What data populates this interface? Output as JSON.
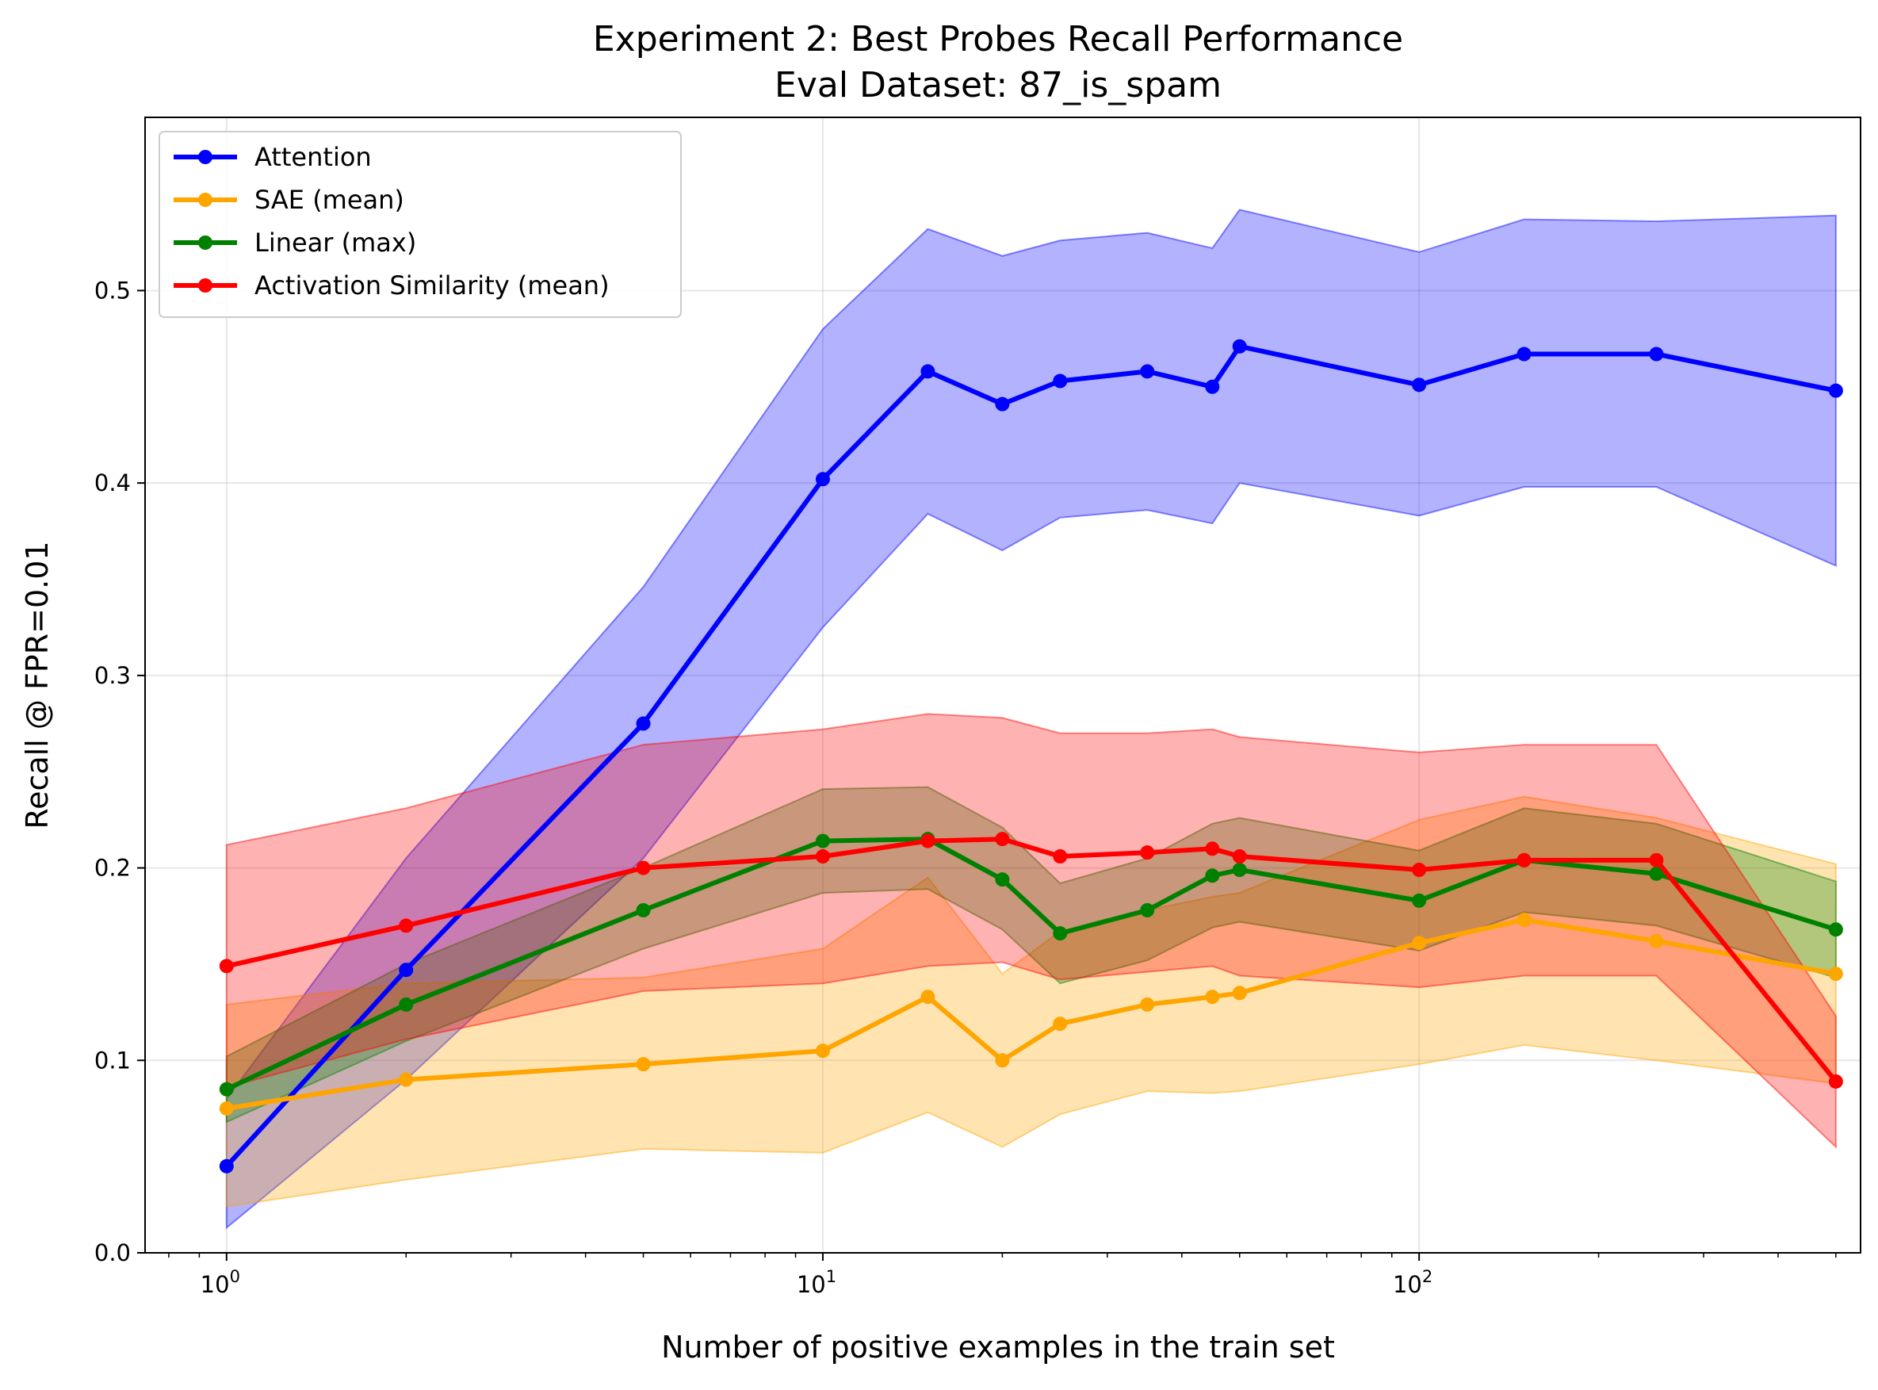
{
  "chart_data": {
    "type": "line",
    "title": "Experiment 2: Best Probes Recall Performance",
    "subtitle": "Eval Dataset: 87_is_spam",
    "xlabel": "Number of positive examples in the train set",
    "ylabel": "Recall @ FPR=0.01",
    "x_scale": "log",
    "xlim": [
      0.73,
      550
    ],
    "ylim": [
      0,
      0.59
    ],
    "x_ticks": [
      {
        "value": 1,
        "base": "10",
        "exp": "0"
      },
      {
        "value": 10,
        "base": "10",
        "exp": "1"
      },
      {
        "value": 100,
        "base": "10",
        "exp": "2"
      }
    ],
    "y_ticks": [
      {
        "value": 0.0,
        "label": "0.0"
      },
      {
        "value": 0.1,
        "label": "0.1"
      },
      {
        "value": 0.2,
        "label": "0.2"
      },
      {
        "value": 0.3,
        "label": "0.3"
      },
      {
        "value": 0.4,
        "label": "0.4"
      },
      {
        "value": 0.5,
        "label": "0.5"
      }
    ],
    "grid": true,
    "legend_position": "upper-left",
    "series": [
      {
        "name": "Attention",
        "color": "#0000ff",
        "x": [
          1,
          2,
          5,
          10,
          15,
          20,
          25,
          35,
          45,
          50,
          100,
          150,
          250,
          500
        ],
        "y": [
          0.045,
          0.147,
          0.275,
          0.402,
          0.458,
          0.441,
          0.453,
          0.458,
          0.45,
          0.471,
          0.451,
          0.467,
          0.467,
          0.448
        ],
        "lower": [
          0.013,
          0.09,
          0.205,
          0.325,
          0.384,
          0.365,
          0.382,
          0.386,
          0.379,
          0.4,
          0.383,
          0.398,
          0.398,
          0.357
        ],
        "upper": [
          0.08,
          0.205,
          0.346,
          0.48,
          0.532,
          0.518,
          0.526,
          0.53,
          0.522,
          0.542,
          0.52,
          0.537,
          0.536,
          0.539
        ]
      },
      {
        "name": "SAE (mean)",
        "color": "#ffa500",
        "x": [
          1,
          2,
          5,
          10,
          15,
          20,
          25,
          35,
          45,
          50,
          100,
          150,
          250,
          500
        ],
        "y": [
          0.075,
          0.09,
          0.098,
          0.105,
          0.133,
          0.1,
          0.119,
          0.129,
          0.133,
          0.135,
          0.161,
          0.173,
          0.162,
          0.145
        ],
        "lower": [
          0.024,
          0.038,
          0.054,
          0.052,
          0.073,
          0.055,
          0.072,
          0.084,
          0.083,
          0.084,
          0.098,
          0.108,
          0.1,
          0.088
        ],
        "upper": [
          0.129,
          0.14,
          0.143,
          0.158,
          0.195,
          0.145,
          0.167,
          0.178,
          0.185,
          0.187,
          0.225,
          0.237,
          0.226,
          0.202
        ]
      },
      {
        "name": "Linear (max)",
        "color": "#008000",
        "x": [
          1,
          2,
          5,
          10,
          15,
          20,
          25,
          35,
          45,
          50,
          100,
          150,
          250,
          500
        ],
        "y": [
          0.085,
          0.129,
          0.178,
          0.214,
          0.215,
          0.194,
          0.166,
          0.178,
          0.196,
          0.199,
          0.183,
          0.204,
          0.197,
          0.168
        ],
        "lower": [
          0.068,
          0.11,
          0.158,
          0.187,
          0.189,
          0.168,
          0.14,
          0.152,
          0.169,
          0.172,
          0.157,
          0.177,
          0.17,
          0.143
        ],
        "upper": [
          0.102,
          0.15,
          0.2,
          0.241,
          0.242,
          0.221,
          0.192,
          0.205,
          0.223,
          0.226,
          0.209,
          0.231,
          0.223,
          0.193
        ]
      },
      {
        "name": "Activation Similarity (mean)",
        "color": "#ff0000",
        "x": [
          1,
          2,
          5,
          10,
          15,
          20,
          25,
          35,
          45,
          50,
          100,
          150,
          250,
          500
        ],
        "y": [
          0.149,
          0.17,
          0.2,
          0.206,
          0.214,
          0.215,
          0.206,
          0.208,
          0.21,
          0.206,
          0.199,
          0.204,
          0.204,
          0.089
        ],
        "lower": [
          0.086,
          0.111,
          0.136,
          0.14,
          0.149,
          0.151,
          0.142,
          0.146,
          0.149,
          0.144,
          0.138,
          0.144,
          0.144,
          0.055
        ],
        "upper": [
          0.212,
          0.231,
          0.264,
          0.272,
          0.28,
          0.278,
          0.27,
          0.27,
          0.272,
          0.268,
          0.26,
          0.264,
          0.264,
          0.123
        ]
      }
    ]
  }
}
